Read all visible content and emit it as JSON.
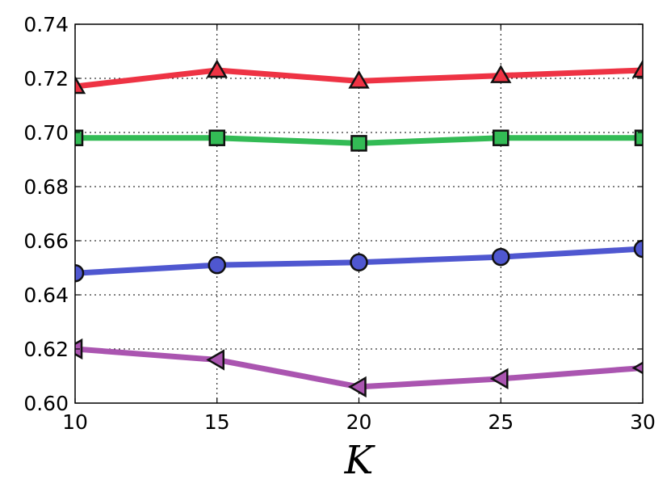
{
  "chart_data": {
    "type": "line",
    "title": "",
    "xlabel": "K",
    "ylabel": "",
    "x": [
      10,
      15,
      20,
      25,
      30
    ],
    "xlim": [
      10,
      30
    ],
    "ylim": [
      0.6,
      0.74
    ],
    "x_ticks": [
      10,
      15,
      20,
      25,
      30
    ],
    "x_tick_labels": [
      "10",
      "15",
      "20",
      "25",
      "30"
    ],
    "y_ticks": [
      0.6,
      0.62,
      0.64,
      0.66,
      0.68,
      0.7,
      0.72,
      0.74
    ],
    "y_tick_labels": [
      "0.60",
      "0.62",
      "0.64",
      "0.66",
      "0.68",
      "0.70",
      "0.72",
      "0.74"
    ],
    "grid": true,
    "legend": "none",
    "series": [
      {
        "marker": "triangle-up",
        "color": "#ee3344",
        "values": [
          0.717,
          0.723,
          0.719,
          0.721,
          0.723
        ]
      },
      {
        "marker": "square",
        "color": "#33bb55",
        "values": [
          0.698,
          0.698,
          0.696,
          0.698,
          0.698
        ]
      },
      {
        "marker": "circle",
        "color": "#4f57d0",
        "values": [
          0.648,
          0.651,
          0.652,
          0.654,
          0.657
        ]
      },
      {
        "marker": "triangle-left",
        "color": "#aa55b0",
        "values": [
          0.62,
          0.616,
          0.606,
          0.609,
          0.613
        ]
      }
    ]
  }
}
